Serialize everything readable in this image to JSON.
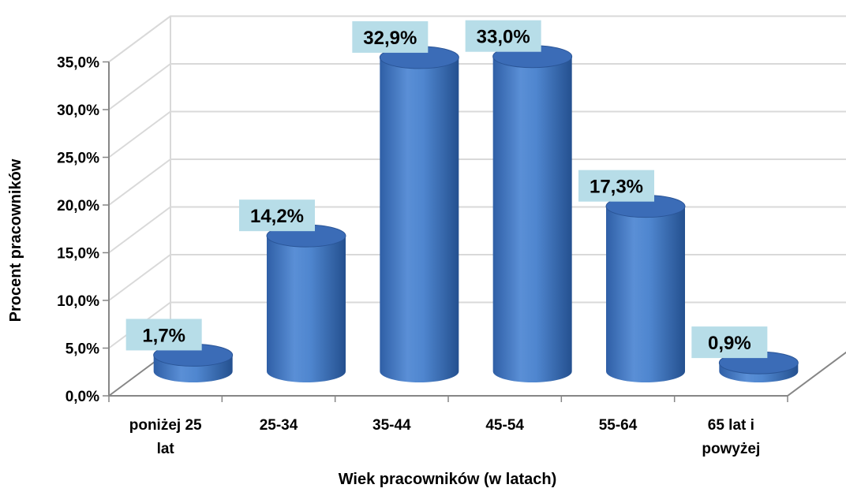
{
  "chart_data": {
    "type": "bar",
    "style": "3d-cylinder",
    "categories": [
      "poniżej 25 lat",
      "25-34",
      "35-44",
      "45-54",
      "55-64",
      "65 lat i powyżej"
    ],
    "category_lines": [
      [
        "poniżej 25",
        "lat"
      ],
      [
        "25-34"
      ],
      [
        "35-44"
      ],
      [
        "45-54"
      ],
      [
        "55-64"
      ],
      [
        "65 lat i",
        "powyżej"
      ]
    ],
    "values": [
      1.7,
      14.2,
      32.9,
      33.0,
      17.3,
      0.9
    ],
    "data_labels": [
      "1,7%",
      "14,2%",
      "32,9%",
      "33,0%",
      "17,3%",
      "0,9%"
    ],
    "xlabel": "Wiek pracowników (w latach)",
    "ylabel": "Procent pracowników",
    "ylim": [
      0,
      35
    ],
    "yticks": [
      0,
      5,
      10,
      15,
      20,
      25,
      30,
      35
    ],
    "ytick_labels": [
      "0,0%",
      "5,0%",
      "10,0%",
      "15,0%",
      "20,0%",
      "25,0%",
      "30,0%",
      "35,0%"
    ],
    "grid": true,
    "legend": "none",
    "colors": {
      "bar_light": "#5a8fd6",
      "bar_mid": "#4a7ec8",
      "bar_dark": "#2a5597",
      "bar_top": "#3b6cb7",
      "label_bg": "#b7dde8",
      "grid": "#d9d9d9",
      "axis": "#868686"
    }
  }
}
